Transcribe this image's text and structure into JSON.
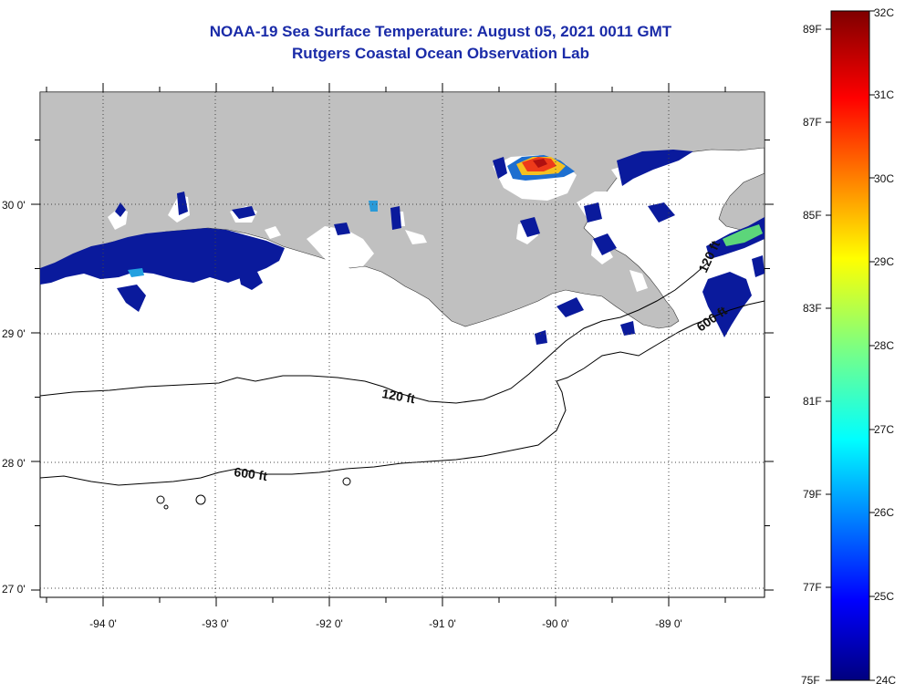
{
  "title": "NOAA-19 Sea Surface Temperature:  August 05, 2021 0011 GMT",
  "subtitle": "Rutgers Coastal Ocean Observation Lab",
  "map": {
    "lon_ticks": [
      "-94 0'",
      "-93 0'",
      "-92 0'",
      "-91 0'",
      "-90 0'",
      "-89 0'"
    ],
    "lat_ticks": [
      "30 0'",
      "29 0'",
      "28 0'",
      "27 0'"
    ],
    "contours": [
      "120 ft",
      "600 ft",
      "120 ft",
      "600 ft"
    ],
    "land_color": "#c0c0c0",
    "ocean_color": "#ffffff"
  },
  "colorbar": {
    "celsius": [
      "32C",
      "31C",
      "30C",
      "29C",
      "28C",
      "27C",
      "26C",
      "25C",
      "24C"
    ],
    "fahrenheit": [
      "89F",
      "87F",
      "85F",
      "83F",
      "81F",
      "79F",
      "77F",
      "75F"
    ],
    "min_c": 24,
    "max_c": 32
  }
}
